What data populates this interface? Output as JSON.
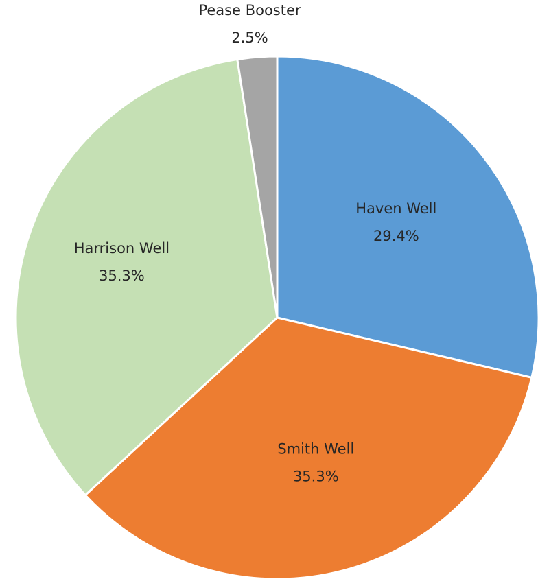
{
  "chart_data": {
    "type": "pie",
    "title": "",
    "slices": [
      {
        "name": "Haven Well",
        "value": 29.4,
        "label": "29.4%",
        "color": "#5B9BD5"
      },
      {
        "name": "Smith Well",
        "value": 35.3,
        "label": "35.3%",
        "color": "#ED7D31"
      },
      {
        "name": "Harrison Well",
        "value": 35.3,
        "label": "35.3%",
        "color": "#C5E0B4"
      },
      {
        "name": "Pease Booster",
        "value": 2.5,
        "label": "2.5%",
        "color": "#A5A5A5"
      }
    ],
    "start_angle": "12 o'clock",
    "direction": "clockwise",
    "legend": "none"
  }
}
